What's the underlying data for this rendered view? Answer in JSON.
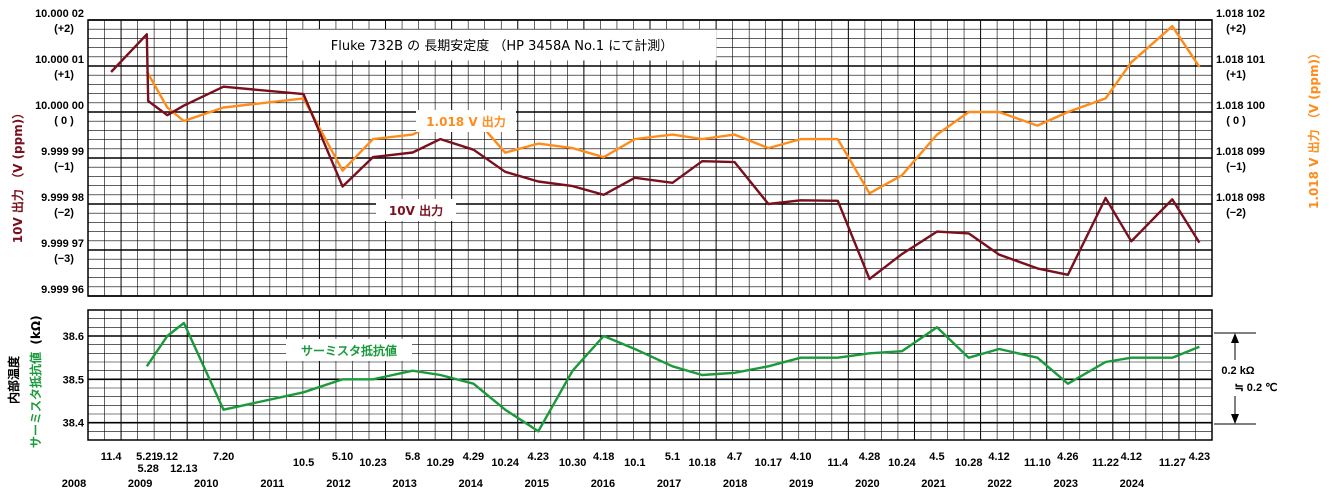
{
  "chart_data": {
    "type": "line",
    "title": "Fluke 732B の 長期安定度 （HP 3458A No.1 にて計測）",
    "upper": {
      "ylabel_left": "10V 出力 （V (ppm)）",
      "ylabel_right": "1.018 V 出力 （V (ppm)）",
      "ylim": [
        9.99996,
        10.00002
      ],
      "left_ticks": [
        {
          "value": 10.00002,
          "label": "10.000 02",
          "ppm": "(+2)"
        },
        {
          "value": 10.00001,
          "label": "10.000 01",
          "ppm": "(+1)"
        },
        {
          "value": 10.0,
          "label": "10.000 00",
          "ppm": "( 0 )"
        },
        {
          "value": 9.99999,
          "label": "9.999 99",
          "ppm": "(−1)"
        },
        {
          "value": 9.99998,
          "label": "9.999 98",
          "ppm": "(−2)"
        },
        {
          "value": 9.99997,
          "label": "9.999 97",
          "ppm": "(−3)"
        },
        {
          "value": 9.99996,
          "label": "9.999 96",
          "ppm": ""
        }
      ],
      "right_ticks": [
        {
          "label": "1.018 102",
          "ppm": "(+2)"
        },
        {
          "label": "1.018 101",
          "ppm": "(+1)"
        },
        {
          "label": "1.018 100",
          "ppm": "( 0 )"
        },
        {
          "label": "1.018 099",
          "ppm": "(−1)"
        },
        {
          "label": "1.018 098",
          "ppm": "(−2)"
        }
      ],
      "series": [
        {
          "name": "10V 出力",
          "color": "#7a0f1e",
          "x": [
            2008.85,
            2009.39,
            2009.41,
            2009.7,
            2009.95,
            2010.55,
            2011.76,
            2012.35,
            2012.81,
            2013.41,
            2013.83,
            2014.33,
            2014.81,
            2015.31,
            2015.83,
            2016.3,
            2016.77,
            2017.34,
            2017.79,
            2018.28,
            2018.79,
            2019.28,
            2019.84,
            2020.32,
            2020.81,
            2021.34,
            2021.82,
            2022.28,
            2022.86,
            2023.32,
            2023.89,
            2024.28,
            2024.9,
            2025.31
          ],
          "y": [
            10.0000087,
            10.0000169,
            10.0000024,
            9.9999993,
            10.0000014,
            10.0000055,
            10.0000039,
            9.9999838,
            9.9999902,
            9.9999912,
            9.9999941,
            9.9999918,
            9.999987,
            9.9999849,
            9.9999839,
            9.999982,
            9.9999857,
            9.9999846,
            9.9999893,
            9.9999891,
            9.99998,
            9.9999808,
            9.9999807,
            9.9999637,
            9.9999691,
            9.999974,
            9.9999736,
            9.999969,
            9.999966,
            9.9999646,
            9.9999813,
            9.9999719,
            9.999981,
            9.9999716
          ]
        },
        {
          "name": "1.018 V 出力",
          "color": "#ff8c1a",
          "x": [
            2009.39,
            2009.7,
            2009.95,
            2010.55,
            2011.76,
            2012.35,
            2012.81,
            2013.41,
            2013.83,
            2014.33,
            2014.81,
            2015.31,
            2015.83,
            2016.3,
            2016.77,
            2017.34,
            2017.79,
            2018.28,
            2018.79,
            2019.28,
            2019.84,
            2020.32,
            2020.81,
            2021.34,
            2021.82,
            2022.28,
            2022.86,
            2023.32,
            2023.89,
            2024.28,
            2024.9,
            2025.31
          ],
          "y": [
            1.0181009,
            1.0181001,
            1.0180998,
            1.0181001,
            1.0181003,
            1.0180987,
            1.0180994,
            1.0180995,
            1.0180998,
            1.0180999,
            1.0180991,
            1.0180993,
            1.0180992,
            1.018099,
            1.0180994,
            1.0180995,
            1.0180994,
            1.0180995,
            1.0180992,
            1.0180994,
            1.0180994,
            1.0180982,
            1.0180986,
            1.0180995,
            1.0181,
            1.0181,
            1.0180997,
            1.0181,
            1.0181003,
            1.0181011,
            1.0181019,
            1.018101
          ]
        }
      ]
    },
    "lower": {
      "ylabel_left": "内部温度",
      "ylabel_green": "サーミスタ抵抗値",
      "unit": "(kΩ)",
      "ylim": [
        38.36,
        38.66
      ],
      "ticks": [
        38.6,
        38.5,
        38.4
      ],
      "tick_labels": [
        "38.6",
        "38.5",
        "38.4"
      ],
      "series": [
        {
          "name": "サーミスタ抵抗値",
          "color": "#1a9a3a",
          "x": [
            2009.39,
            2009.7,
            2009.95,
            2010.55,
            2011.76,
            2012.35,
            2012.81,
            2013.41,
            2013.83,
            2014.33,
            2014.81,
            2015.31,
            2015.83,
            2016.3,
            2016.77,
            2017.34,
            2017.79,
            2018.28,
            2018.79,
            2019.28,
            2019.84,
            2020.32,
            2020.81,
            2021.34,
            2021.82,
            2022.28,
            2022.86,
            2023.32,
            2023.89,
            2024.28,
            2024.9,
            2025.31
          ],
          "y": [
            38.53,
            38.6,
            38.63,
            38.43,
            38.47,
            38.5,
            38.5,
            38.52,
            38.51,
            38.49,
            38.43,
            38.38,
            38.52,
            38.6,
            38.57,
            38.53,
            38.51,
            38.515,
            38.53,
            38.55,
            38.55,
            38.56,
            38.565,
            38.62,
            38.55,
            38.57,
            38.55,
            38.49,
            38.54,
            38.55,
            38.55,
            38.575
          ]
        }
      ],
      "scale_annotation": {
        "upper": "0.2 kΩ",
        "lower": "≒ 0.2 ℃"
      }
    },
    "x_ticks": [
      {
        "label": "11.4",
        "x": 2008.85,
        "row": 1
      },
      {
        "label": "5.21",
        "x": 2009.39,
        "row": 1
      },
      {
        "label": "5.28",
        "x": 2009.41,
        "row": 2
      },
      {
        "label": "9.12",
        "x": 2009.7,
        "row": 1
      },
      {
        "label": "12.13",
        "x": 2009.95,
        "row": 2
      },
      {
        "label": "7.20",
        "x": 2010.55,
        "row": 1
      },
      {
        "label": "10.5",
        "x": 2011.76,
        "row": 3
      },
      {
        "label": "5.10",
        "x": 2012.35,
        "row": 2
      },
      {
        "label": "10.23",
        "x": 2012.81,
        "row": 3
      },
      {
        "label": "5.8",
        "x": 2013.41,
        "row": 2
      },
      {
        "label": "10.29",
        "x": 2013.83,
        "row": 3
      },
      {
        "label": "4.29",
        "x": 2014.33,
        "row": 2
      },
      {
        "label": "10.24",
        "x": 2014.81,
        "row": 3
      },
      {
        "label": "4.23",
        "x": 2015.31,
        "row": 2
      },
      {
        "label": "10.30",
        "x": 2015.83,
        "row": 3
      },
      {
        "label": "4.18",
        "x": 2016.3,
        "row": 2
      },
      {
        "label": "10.1",
        "x": 2016.77,
        "row": 3
      },
      {
        "label": "5.1",
        "x": 2017.34,
        "row": 2
      },
      {
        "label": "10.18",
        "x": 2017.79,
        "row": 3
      },
      {
        "label": "4.7",
        "x": 2018.28,
        "row": 2
      },
      {
        "label": "10.17",
        "x": 2018.79,
        "row": 3
      },
      {
        "label": "4.10",
        "x": 2019.28,
        "row": 2
      },
      {
        "label": "11.4",
        "x": 2019.84,
        "row": 3
      },
      {
        "label": "4.28",
        "x": 2020.32,
        "row": 2
      },
      {
        "label": "10.24",
        "x": 2020.81,
        "row": 3
      },
      {
        "label": "4.5",
        "x": 2021.34,
        "row": 2
      },
      {
        "label": "10.28",
        "x": 2021.82,
        "row": 3
      },
      {
        "label": "4.12",
        "x": 2022.28,
        "row": 2
      },
      {
        "label": "11.10",
        "x": 2022.86,
        "row": 3
      },
      {
        "label": "4.26",
        "x": 2023.32,
        "row": 2
      },
      {
        "label": "11.22",
        "x": 2023.89,
        "row": 3
      },
      {
        "label": "4.12",
        "x": 2024.28,
        "row": 2
      },
      {
        "label": "11.27",
        "x": 2024.9,
        "row": 3
      },
      {
        "label": "4.23",
        "x": 2025.31,
        "row": 2
      }
    ],
    "years": [
      "2008",
      "2009",
      "2010",
      "2011",
      "2012",
      "2013",
      "2014",
      "2015",
      "2016",
      "2017",
      "2018",
      "2019",
      "2020",
      "2021",
      "2022",
      "2023",
      "2024"
    ],
    "xlim": [
      2008.5,
      2025.5
    ],
    "grid": true
  }
}
